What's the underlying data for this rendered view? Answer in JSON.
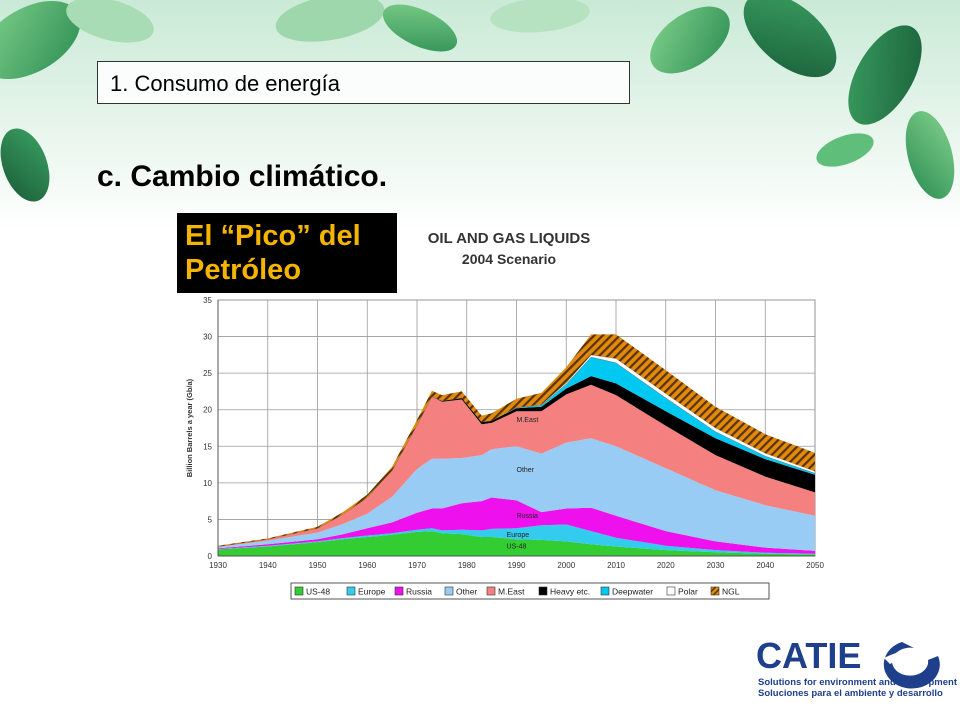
{
  "slide": {
    "section_label": "1. Consumo de energía",
    "subtitle": "c. Cambio climático.",
    "image_heading_line1": "El “Pico” del",
    "image_heading_line2": "Petróleo"
  },
  "logo": {
    "name": "CATIE",
    "tagline_en": "Solutions for environment and development",
    "tagline_es": "Soluciones para el ambiente y desarrollo",
    "color": "#1e3f8c"
  },
  "chart_data": {
    "type": "area",
    "title": "OIL AND GAS LIQUIDS",
    "subtitle": "2004 Scenario",
    "xlabel": "",
    "ylabel": "Billion Barrels a year (Gb/a)",
    "xlim": [
      1930,
      2050
    ],
    "ylim": [
      0,
      35
    ],
    "x_ticks": [
      1930,
      1940,
      1950,
      1960,
      1970,
      1980,
      1990,
      2000,
      2010,
      2020,
      2030,
      2040,
      2050
    ],
    "y_ticks": [
      0,
      5,
      10,
      15,
      20,
      25,
      30,
      35
    ],
    "grid": true,
    "legend_position": "bottom",
    "x": [
      1930,
      1940,
      1950,
      1955,
      1960,
      1965,
      1970,
      1973,
      1975,
      1979,
      1983,
      1985,
      1990,
      1995,
      2000,
      2005,
      2010,
      2020,
      2030,
      2040,
      2050
    ],
    "series": [
      {
        "name": "US-48",
        "color": "#33cc33",
        "values": [
          0.9,
          1.3,
          1.9,
          2.3,
          2.6,
          2.9,
          3.3,
          3.4,
          3.1,
          3.0,
          2.6,
          2.6,
          2.3,
          2.2,
          2.0,
          1.6,
          1.3,
          0.8,
          0.5,
          0.3,
          0.2
        ]
      },
      {
        "name": "Europe",
        "color": "#33ccee",
        "values": [
          0.05,
          0.1,
          0.1,
          0.15,
          0.2,
          0.2,
          0.3,
          0.4,
          0.4,
          0.6,
          0.9,
          1.1,
          1.5,
          2.0,
          2.3,
          1.8,
          1.2,
          0.6,
          0.3,
          0.15,
          0.1
        ]
      },
      {
        "name": "Russia",
        "color": "#ee11ee",
        "values": [
          0.1,
          0.2,
          0.3,
          0.5,
          1.0,
          1.5,
          2.3,
          2.7,
          3.0,
          3.6,
          4.0,
          4.3,
          3.8,
          1.8,
          2.2,
          3.2,
          3.0,
          2.0,
          1.2,
          0.7,
          0.4
        ]
      },
      {
        "name": "Other",
        "color": "#99ccf5",
        "values": [
          0.2,
          0.5,
          0.9,
          1.4,
          2.0,
          3.5,
          6.0,
          6.8,
          6.8,
          6.2,
          6.3,
          6.6,
          7.4,
          8.0,
          9.0,
          9.5,
          9.5,
          8.6,
          7.0,
          5.8,
          4.8
        ]
      },
      {
        "name": "M.East",
        "color": "#f58080",
        "values": [
          0.05,
          0.2,
          0.6,
          1.3,
          2.2,
          3.6,
          6.0,
          8.5,
          7.8,
          8.0,
          4.2,
          3.6,
          4.8,
          5.8,
          6.6,
          7.3,
          7.0,
          5.8,
          4.8,
          3.9,
          3.2
        ]
      },
      {
        "name": "Heavy etc.",
        "color": "#000000",
        "values": [
          0,
          0,
          0,
          0,
          0,
          0,
          0,
          0,
          0.1,
          0.2,
          0.3,
          0.3,
          0.4,
          0.6,
          0.8,
          1.2,
          1.6,
          2.0,
          2.3,
          2.4,
          2.4
        ]
      },
      {
        "name": "Deepwater",
        "color": "#00c8f0",
        "values": [
          0,
          0,
          0,
          0,
          0,
          0,
          0,
          0,
          0,
          0,
          0,
          0,
          0.05,
          0.2,
          0.6,
          2.6,
          2.8,
          1.8,
          0.9,
          0.4,
          0.2
        ]
      },
      {
        "name": "Polar",
        "color": "#ffffff",
        "values": [
          0,
          0,
          0,
          0,
          0,
          0,
          0,
          0,
          0,
          0,
          0,
          0,
          0.05,
          0.1,
          0.2,
          0.3,
          0.6,
          0.6,
          0.5,
          0.4,
          0.3
        ]
      },
      {
        "name": "NGL",
        "color": "#e08a10",
        "values": [
          0.1,
          0.1,
          0.2,
          0.3,
          0.4,
          0.5,
          0.7,
          0.8,
          0.8,
          0.9,
          0.9,
          1.0,
          1.2,
          1.6,
          2.1,
          2.8,
          3.3,
          3.2,
          2.9,
          2.6,
          2.5
        ]
      }
    ],
    "annotations": [
      {
        "text": "M.East",
        "x": 1990,
        "y": 18.3
      },
      {
        "text": "Other",
        "x": 1990,
        "y": 11.5
      },
      {
        "text": "Russia",
        "x": 1990,
        "y": 5.2
      },
      {
        "text": "Europe",
        "x": 1988,
        "y": 2.6
      },
      {
        "text": "US-48",
        "x": 1988,
        "y": 1.0
      }
    ]
  }
}
